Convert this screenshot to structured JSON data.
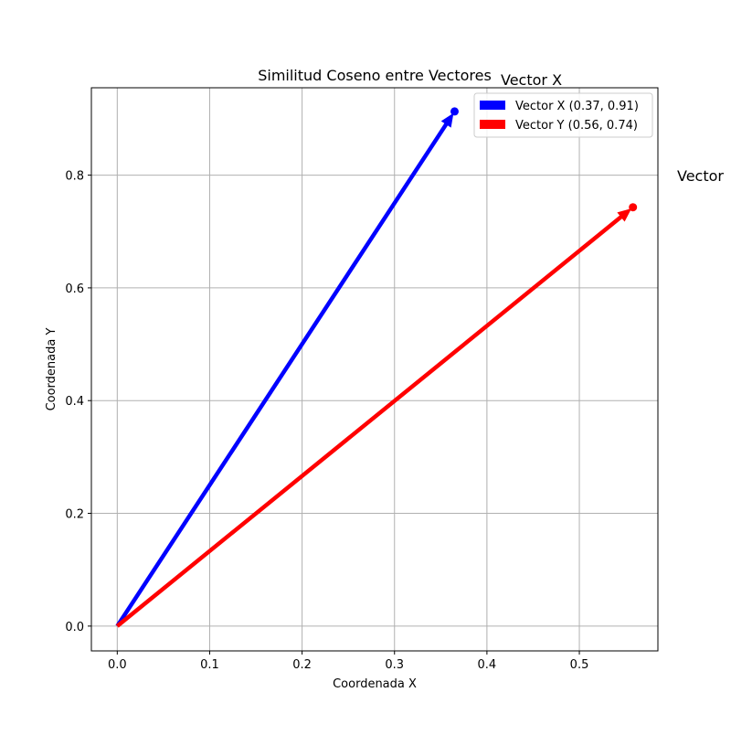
{
  "chart_data": {
    "type": "vector",
    "title": "Similitud Coseno entre Vectores",
    "xlabel": "Coordenada X",
    "ylabel": "Coordenada Y",
    "xlim": [
      -0.028,
      0.585
    ],
    "ylim": [
      -0.044,
      0.955
    ],
    "xticks": [
      0.0,
      0.1,
      0.2,
      0.3,
      0.4,
      0.5
    ],
    "xtick_labels": [
      "0.0",
      "0.1",
      "0.2",
      "0.3",
      "0.4",
      "0.5"
    ],
    "yticks": [
      0.0,
      0.2,
      0.4,
      0.6,
      0.8
    ],
    "ytick_labels": [
      "0.0",
      "0.2",
      "0.4",
      "0.6",
      "0.8"
    ],
    "grid": true,
    "legend_position": "top-right",
    "series": [
      {
        "name": "Vector X (0.37, 0.91)",
        "label": "Vector X",
        "color": "#0000ff",
        "x": [
          0,
          0.365
        ],
        "y": [
          0,
          0.913
        ]
      },
      {
        "name": "Vector Y (0.56, 0.74)",
        "label": "Vector",
        "color": "#ff0000",
        "x": [
          0,
          0.558
        ],
        "y": [
          0,
          0.743
        ]
      }
    ]
  }
}
